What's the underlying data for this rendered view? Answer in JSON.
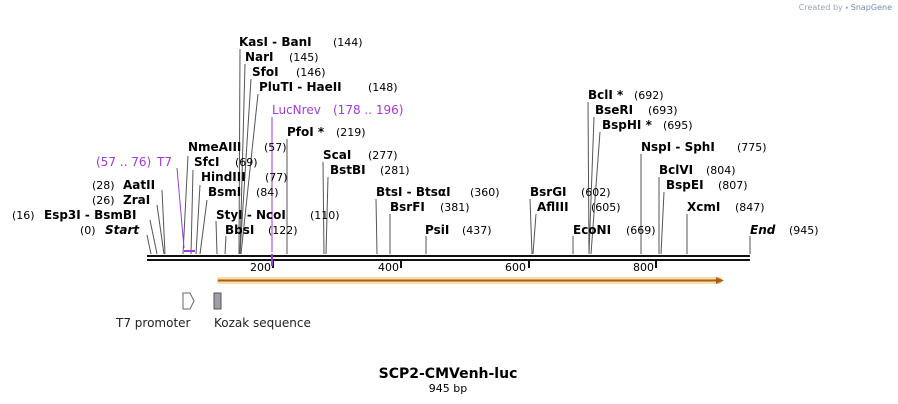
{
  "watermark": {
    "prefix": "Created by",
    "brand": "SnapGene"
  },
  "plasmid": {
    "name": "SCP2-CMVenh-luc",
    "size_label": "945 bp",
    "length": 945
  },
  "ruler": {
    "ticks": [
      "200",
      "400",
      "600",
      "800"
    ]
  },
  "endpoints": {
    "start": {
      "label": "Start",
      "pos": "(0)"
    },
    "end": {
      "label": "End",
      "pos": "(945)"
    }
  },
  "sites": [
    {
      "label": "Esp3I  -  BsmBI",
      "pos": "(16)"
    },
    {
      "label": "ZraI",
      "pos": "(26)"
    },
    {
      "label": "AatII",
      "pos": "(28)"
    },
    {
      "label": "NmeAIII",
      "pos": "(57)"
    },
    {
      "label": "SfcI",
      "pos": "(69)"
    },
    {
      "label": "HindIII",
      "pos": "(77)"
    },
    {
      "label": "BsmI",
      "pos": "(84)"
    },
    {
      "label": "StyI  -  NcoI",
      "pos": "(110)"
    },
    {
      "label": "BbsI",
      "pos": "(122)"
    },
    {
      "label": "KasI  -  BanI",
      "pos": "(144)"
    },
    {
      "label": "NarI",
      "pos": "(145)"
    },
    {
      "label": "SfoI",
      "pos": "(146)"
    },
    {
      "label": "PluTI  -  HaeII",
      "pos": "(148)"
    },
    {
      "label": "PfoI *",
      "pos": "(219)"
    },
    {
      "label": "ScaI",
      "pos": "(277)"
    },
    {
      "label": "BstBI",
      "pos": "(281)"
    },
    {
      "label": "BtsI  -  BtsαI",
      "pos": "(360)"
    },
    {
      "label": "BsrFI",
      "pos": "(381)"
    },
    {
      "label": "PsiI",
      "pos": "(437)"
    },
    {
      "label": "BsrGI",
      "pos": "(602)"
    },
    {
      "label": "AflIII",
      "pos": "(605)"
    },
    {
      "label": "EcoNI",
      "pos": "(669)"
    },
    {
      "label": "BclI *",
      "pos": "(692)"
    },
    {
      "label": "BseRI",
      "pos": "(693)"
    },
    {
      "label": "BspHI *",
      "pos": "(695)"
    },
    {
      "label": "NspI  -  SphI",
      "pos": "(775)"
    },
    {
      "label": "BclVI",
      "pos": "(804)"
    },
    {
      "label": "BspEI",
      "pos": "(807)"
    },
    {
      "label": "XcmI",
      "pos": "(847)"
    }
  ],
  "primers": [
    {
      "label": "T7",
      "range": "(57 .. 76)"
    },
    {
      "label": "LucNrev",
      "range": "(178 .. 196)"
    }
  ],
  "features": [
    {
      "label": "T7 promoter"
    },
    {
      "label": "Kozak sequence"
    }
  ],
  "colors": {
    "primer": "#a13cd6",
    "orf_fill": "#f2ba4a",
    "orf_stroke": "#a8611b",
    "backbone": "#111111"
  }
}
